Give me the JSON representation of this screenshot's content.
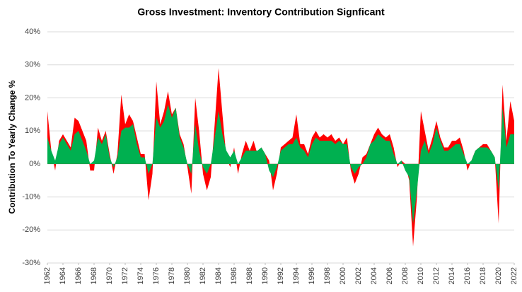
{
  "chart_data": {
    "type": "area",
    "title": "Gross Investment: Inventory Contribution Signficant",
    "ylabel": "Contribution To Yearly Change %",
    "x": [
      1962,
      1962.5,
      1963,
      1963.5,
      1964,
      1964.5,
      1965,
      1965.5,
      1966,
      1966.5,
      1967,
      1967.5,
      1968,
      1968.5,
      1969,
      1969.5,
      1970,
      1970.5,
      1971,
      1971.5,
      1972,
      1972.5,
      1973,
      1973.5,
      1974,
      1974.5,
      1975,
      1975.5,
      1976,
      1976.5,
      1977,
      1977.5,
      1978,
      1978.5,
      1979,
      1979.5,
      1980,
      1980.5,
      1981,
      1981.5,
      1982,
      1982.5,
      1983,
      1983.5,
      1984,
      1984.5,
      1985,
      1985.5,
      1986,
      1986.5,
      1987,
      1987.5,
      1988,
      1988.5,
      1989,
      1989.5,
      1990,
      1990.5,
      1991,
      1991.5,
      1992,
      1992.5,
      1993,
      1993.5,
      1994,
      1994.5,
      1995,
      1995.5,
      1996,
      1996.5,
      1997,
      1997.5,
      1998,
      1998.5,
      1999,
      1999.5,
      2000,
      2000.5,
      2001,
      2001.5,
      2002,
      2002.5,
      2003,
      2003.5,
      2004,
      2004.5,
      2005,
      2005.5,
      2006,
      2006.5,
      2007,
      2007.5,
      2008,
      2008.5,
      2009,
      2009.5,
      2010,
      2010.5,
      2011,
      2011.5,
      2012,
      2012.5,
      2013,
      2013.5,
      2014,
      2014.5,
      2015,
      2015.5,
      2016,
      2016.5,
      2017,
      2017.5,
      2018,
      2018.5,
      2019,
      2019.5,
      2020,
      2020.5,
      2021,
      2021.5,
      2022
    ],
    "series": [
      {
        "color": "#ff0000",
        "values": [
          16,
          4,
          -2,
          7,
          9,
          7,
          5,
          14,
          13,
          10,
          7,
          -2,
          -2,
          11,
          7,
          10,
          3,
          -3,
          3,
          21,
          12,
          15,
          13,
          8,
          3,
          3,
          -11,
          -3,
          25,
          12,
          16,
          22,
          15,
          17,
          9,
          6,
          -1,
          -9,
          20,
          10,
          -3,
          -8,
          -4,
          12,
          29,
          15,
          2,
          -1,
          5,
          -3,
          3,
          7,
          4,
          7,
          3,
          5,
          3,
          1,
          -8,
          -3,
          5,
          6,
          7,
          8,
          15,
          6,
          6,
          3,
          8,
          10,
          8,
          9,
          8,
          9,
          7,
          8,
          6,
          8,
          -2,
          -6,
          -3,
          2,
          3,
          6,
          9,
          11,
          9,
          8,
          9,
          5,
          -1,
          1,
          0,
          -5,
          -25,
          -10,
          16,
          10,
          4,
          8,
          13,
          8,
          5,
          5,
          7,
          7,
          8,
          4,
          -2,
          1,
          4,
          5,
          6,
          6,
          4,
          2,
          -18,
          24,
          7,
          19,
          13
        ]
      },
      {
        "color": "#00b050",
        "values": [
          8,
          4,
          1,
          6,
          8,
          6,
          4,
          9,
          10,
          7,
          4,
          0,
          1,
          8,
          6,
          9,
          2,
          -1,
          2,
          10,
          11,
          11,
          12,
          6,
          2,
          2,
          -3,
          0,
          14,
          11,
          13,
          18,
          14,
          17,
          8,
          5,
          0,
          -3,
          12,
          4,
          -1,
          -3,
          0,
          8,
          16,
          9,
          4,
          2,
          4,
          0,
          2,
          4,
          4,
          4,
          4,
          5,
          3,
          -2,
          -4,
          -1,
          4,
          5,
          6,
          6,
          8,
          5,
          4,
          2,
          6,
          8,
          7,
          7,
          7,
          7,
          6,
          7,
          6,
          6,
          -1,
          -3,
          -1,
          0,
          2,
          6,
          7,
          9,
          8,
          7,
          7,
          3,
          0,
          1,
          -2,
          -4,
          -18,
          -8,
          4,
          7,
          3,
          6,
          11,
          7,
          4,
          4,
          5,
          6,
          6,
          3,
          0,
          1,
          4,
          5,
          5,
          5,
          4,
          2,
          -8,
          17,
          5,
          9,
          9
        ]
      }
    ],
    "xlim": [
      1962,
      2022
    ],
    "xticks": [
      1962,
      1964,
      1966,
      1968,
      1970,
      1972,
      1974,
      1976,
      1978,
      1980,
      1982,
      1984,
      1986,
      1988,
      1990,
      1992,
      1994,
      1996,
      1998,
      2000,
      2002,
      2004,
      2006,
      2008,
      2010,
      2012,
      2014,
      2016,
      2018,
      2020,
      2022
    ],
    "ylim": [
      -30,
      40
    ],
    "yticks": [
      {
        "value": -30,
        "label": "-30%"
      },
      {
        "value": -20,
        "label": "-20%"
      },
      {
        "value": -10,
        "label": "-10%"
      },
      {
        "value": 0,
        "label": "0%"
      },
      {
        "value": 10,
        "label": "10%"
      },
      {
        "value": 20,
        "label": "20%"
      },
      {
        "value": 30,
        "label": "30%"
      },
      {
        "value": 40,
        "label": "40%"
      }
    ],
    "grid": true
  }
}
